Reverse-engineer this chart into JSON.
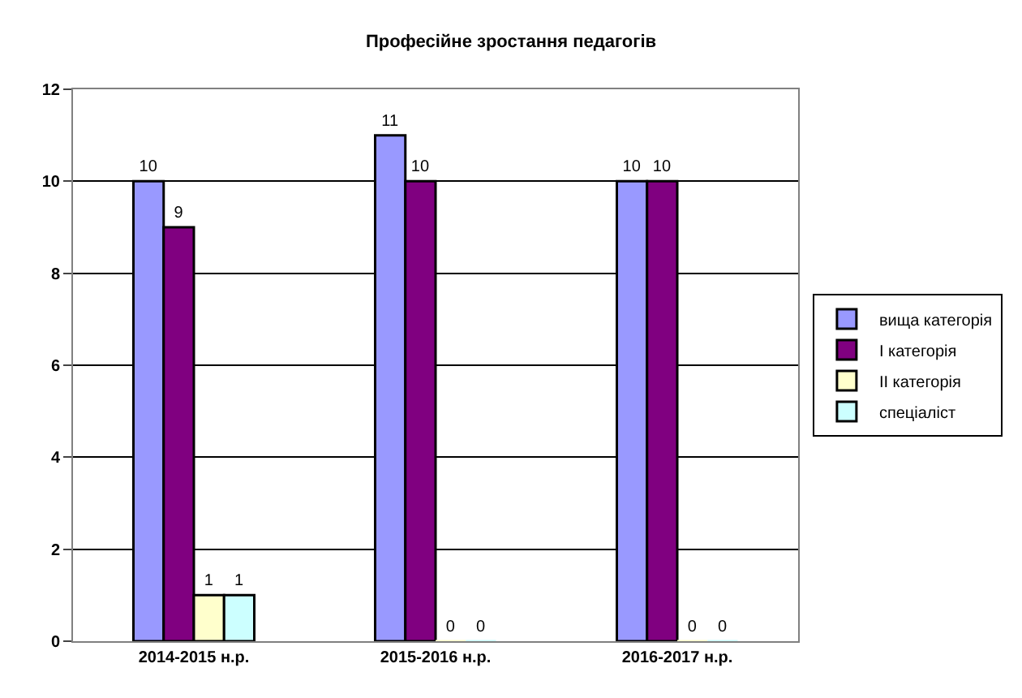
{
  "chart_data": {
    "type": "bar",
    "title": "Професійне зростання педагогів",
    "categories": [
      "2014-2015 н.р.",
      "2015-2016 н.р.",
      "2016-2017 н.р."
    ],
    "series": [
      {
        "name": "вища категорія",
        "color": "#9999ff",
        "values": [
          10,
          11,
          10
        ]
      },
      {
        "name": "І категорія",
        "color": "#800080",
        "values": [
          9,
          10,
          10
        ]
      },
      {
        "name": "ІІ категорія",
        "color": "#ffffcc",
        "values": [
          1,
          0,
          0
        ]
      },
      {
        "name": "спеціаліст",
        "color": "#ccffff",
        "values": [
          1,
          0,
          0
        ]
      }
    ],
    "ylim": [
      0,
      12
    ],
    "yticks": [
      0,
      2,
      4,
      6,
      8,
      10,
      12
    ],
    "grid": "y",
    "legend": "right",
    "data_labels": true
  }
}
